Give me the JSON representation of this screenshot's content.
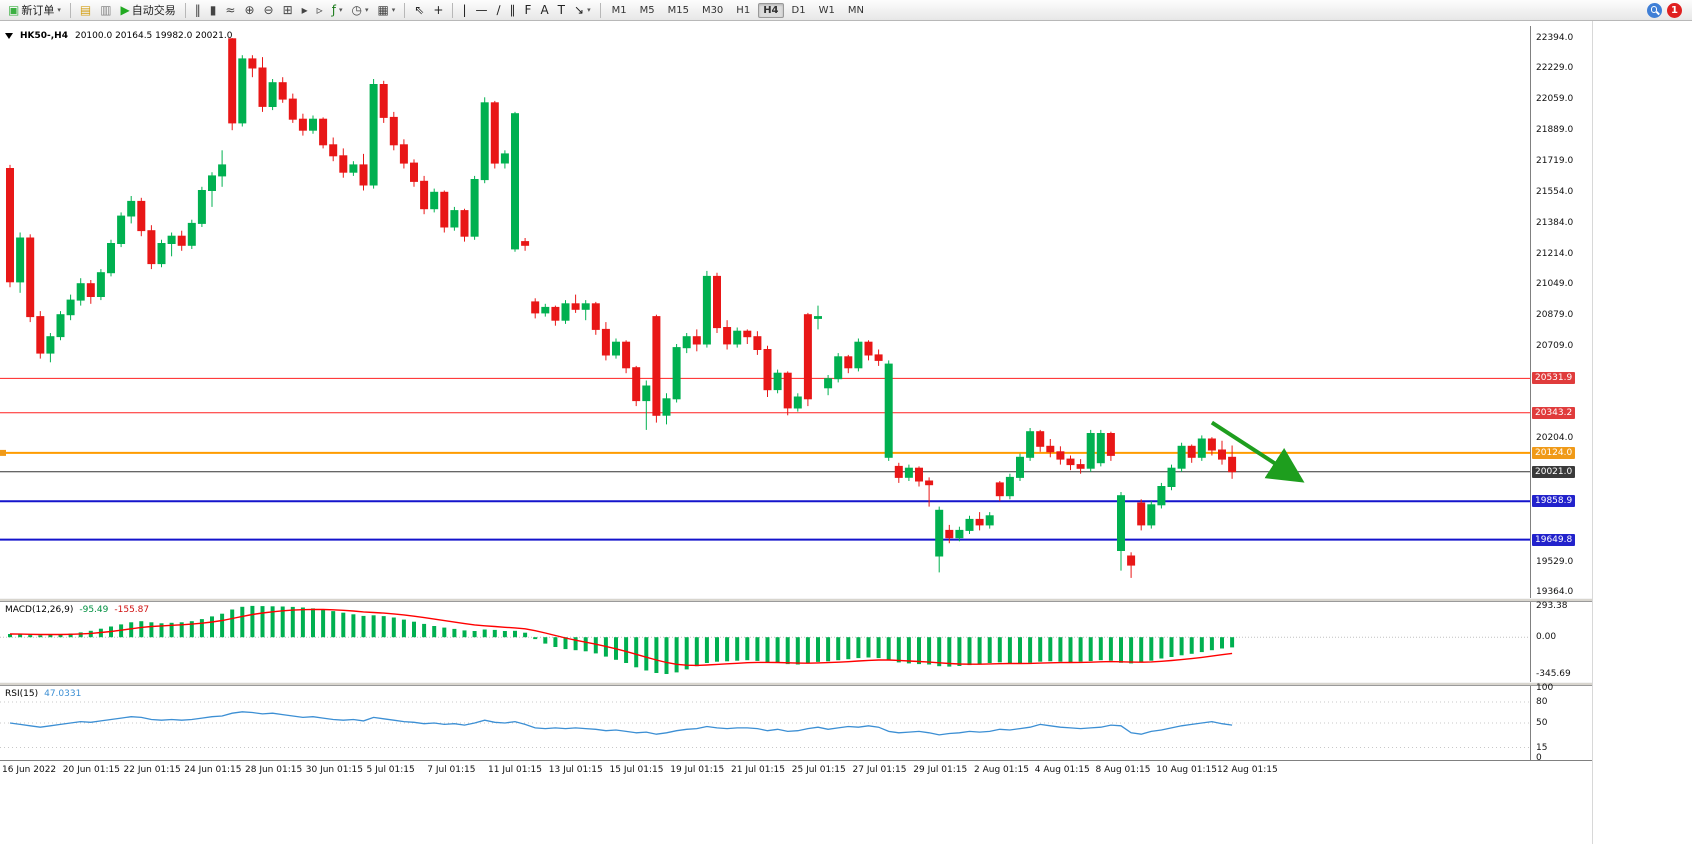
{
  "toolbar": {
    "left_groups": [
      {
        "items": [
          {
            "name": "new-order-button",
            "icon": "new-order-icon",
            "glyph": "▣",
            "glyph_color": "#3cb043",
            "label": "新订单",
            "caret": true
          }
        ]
      },
      {
        "items": [
          {
            "name": "chart-stack-icon",
            "glyph": "▤",
            "glyph_color": "#d4a017"
          },
          {
            "name": "profiles-icon",
            "glyph": "▥",
            "glyph_color": "#888888"
          },
          {
            "name": "auto-trading-button",
            "icon": "play-icon",
            "glyph": "▶",
            "glyph_color": "#22aa22",
            "label": "自动交易"
          }
        ]
      },
      {
        "items": [
          {
            "name": "bars-chart-icon",
            "glyph": "‖",
            "glyph_color": "#444444"
          },
          {
            "name": "candlestick-chart-icon",
            "glyph": "▮",
            "glyph_color": "#444444"
          },
          {
            "name": "line-chart-icon",
            "glyph": "≈",
            "glyph_color": "#444444"
          },
          {
            "name": "zoom-in-icon",
            "glyph": "⊕",
            "glyph_color": "#444444"
          },
          {
            "name": "zoom-out-icon",
            "glyph": "⊖",
            "glyph_color": "#444444"
          },
          {
            "name": "tile-windows-icon",
            "glyph": "⊞",
            "glyph_color": "#444444"
          },
          {
            "name": "auto-scroll-icon",
            "glyph": "▸",
            "glyph_color": "#444444"
          },
          {
            "name": "chart-shift-icon",
            "glyph": "▹",
            "glyph_color": "#444444"
          },
          {
            "name": "indicators-icon",
            "glyph": "ƒ",
            "glyph_color": "#1a7a1a",
            "caret": true
          },
          {
            "name": "periods-icon",
            "glyph": "◷",
            "glyph_color": "#444444",
            "caret": true
          },
          {
            "name": "templates-icon",
            "glyph": "▦",
            "glyph_color": "#444444",
            "caret": true
          }
        ]
      },
      {
        "items": [
          {
            "name": "cursor-icon",
            "glyph": "⇖",
            "glyph_color": "#222222"
          },
          {
            "name": "crosshair-icon",
            "glyph": "+",
            "glyph_color": "#222222"
          }
        ]
      },
      {
        "items": [
          {
            "name": "vertical-line-icon",
            "glyph": "|",
            "glyph_color": "#222222"
          },
          {
            "name": "horizontal-line-icon",
            "glyph": "—",
            "glyph_color": "#222222"
          },
          {
            "name": "trendline-icon",
            "glyph": "∕",
            "glyph_color": "#222222"
          },
          {
            "name": "channel-icon",
            "glyph": "∥",
            "glyph_color": "#222222"
          },
          {
            "name": "fibonacci-icon",
            "glyph": "F",
            "glyph_color": "#222222"
          },
          {
            "name": "text-icon",
            "glyph": "A",
            "glyph_color": "#222222"
          },
          {
            "name": "label-icon",
            "glyph": "T",
            "glyph_color": "#222222"
          },
          {
            "name": "arrows-icon",
            "glyph": "↘",
            "glyph_color": "#222222",
            "caret": true
          }
        ]
      }
    ],
    "timeframes": [
      {
        "label": "M1"
      },
      {
        "label": "M5"
      },
      {
        "label": "M15"
      },
      {
        "label": "M30"
      },
      {
        "label": "H1"
      },
      {
        "label": "H4",
        "active": true
      },
      {
        "label": "D1"
      },
      {
        "label": "W1"
      },
      {
        "label": "MN"
      }
    ],
    "right_icons": [
      {
        "name": "search-icon"
      },
      {
        "name": "notification-badge",
        "label": "1"
      }
    ]
  },
  "chart_data": {
    "type": "candlestick",
    "symbol_period": "HK50-,H4",
    "ohlc_display": "20100.0 20164.5 19982.0 20021.0",
    "colors": {
      "bull": "#00b050",
      "bear": "#e81717",
      "background": "#ffffff"
    },
    "price_axis": {
      "min": 19330,
      "max": 22460,
      "ticks": [
        22394.0,
        22229.0,
        22059.0,
        21889.0,
        21719.0,
        21554.0,
        21384.0,
        21214.0,
        21049.0,
        20879.0,
        20709.0,
        20204.0,
        19529.0,
        19364.0
      ]
    },
    "hlines": [
      {
        "price": 20531.9,
        "color": "#ff2020",
        "badge_bg": "#e03c3c",
        "width": 1
      },
      {
        "price": 20343.2,
        "color": "#ff2020",
        "badge_bg": "#e03c3c",
        "width": 1
      },
      {
        "price": 20124.0,
        "color": "#ff9c00",
        "badge_bg": "#f09a18",
        "width": 2,
        "anchor": true
      },
      {
        "price": 20021.0,
        "color": "#333333",
        "badge_bg": "#3a3a3a",
        "width": 1
      },
      {
        "price": 19858.9,
        "color": "#1414cc",
        "badge_bg": "#2222cc",
        "width": 2
      },
      {
        "price": 19649.8,
        "color": "#1414cc",
        "badge_bg": "#2222cc",
        "width": 2
      }
    ],
    "annotation_arrow": {
      "x_index_from": 119,
      "price_from": 20290,
      "x_index_to": 127.5,
      "price_to": 19985,
      "color": "#1e9e1e"
    },
    "x_labels": [
      "16 Jun 2022",
      "20 Jun 01:15",
      "22 Jun 01:15",
      "24 Jun 01:15",
      "28 Jun 01:15",
      "30 Jun 01:15",
      "5 Jul 01:15",
      "7 Jul 01:15",
      "11 Jul 01:15",
      "13 Jul 01:15",
      "15 Jul 01:15",
      "19 Jul 01:15",
      "21 Jul 01:15",
      "25 Jul 01:15",
      "27 Jul 01:15",
      "29 Jul 01:15",
      "2 Aug 01:15",
      "4 Aug 01:15",
      "8 Aug 01:15",
      "10 Aug 01:15",
      "12 Aug 01:15"
    ],
    "candles": [
      [
        21680,
        21700,
        21030,
        21060
      ],
      [
        21060,
        21330,
        21000,
        21300
      ],
      [
        21300,
        21320,
        20840,
        20870
      ],
      [
        20870,
        20900,
        20640,
        20670
      ],
      [
        20670,
        20780,
        20620,
        20760
      ],
      [
        20760,
        20900,
        20740,
        20880
      ],
      [
        20880,
        20990,
        20850,
        20960
      ],
      [
        20960,
        21080,
        20930,
        21050
      ],
      [
        21050,
        21070,
        20940,
        20980
      ],
      [
        20980,
        21130,
        20960,
        21110
      ],
      [
        21110,
        21290,
        21090,
        21270
      ],
      [
        21270,
        21440,
        21250,
        21420
      ],
      [
        21420,
        21530,
        21380,
        21500
      ],
      [
        21500,
        21520,
        21310,
        21340
      ],
      [
        21340,
        21370,
        21130,
        21160
      ],
      [
        21160,
        21290,
        21140,
        21270
      ],
      [
        21270,
        21330,
        21200,
        21310
      ],
      [
        21310,
        21340,
        21230,
        21260
      ],
      [
        21260,
        21400,
        21240,
        21380
      ],
      [
        21380,
        21580,
        21360,
        21560
      ],
      [
        21560,
        21660,
        21470,
        21640
      ],
      [
        21640,
        21780,
        21580,
        21700
      ],
      [
        22390,
        22394,
        21890,
        21930
      ],
      [
        21930,
        22300,
        21910,
        22280
      ],
      [
        22280,
        22300,
        22180,
        22230
      ],
      [
        22230,
        22290,
        21990,
        22020
      ],
      [
        22020,
        22170,
        22000,
        22150
      ],
      [
        22150,
        22180,
        22040,
        22060
      ],
      [
        22060,
        22090,
        21930,
        21950
      ],
      [
        21950,
        21980,
        21860,
        21890
      ],
      [
        21890,
        21970,
        21870,
        21950
      ],
      [
        21950,
        21960,
        21790,
        21810
      ],
      [
        21810,
        21850,
        21720,
        21750
      ],
      [
        21750,
        21790,
        21630,
        21660
      ],
      [
        21660,
        21720,
        21640,
        21700
      ],
      [
        21700,
        21760,
        21560,
        21590
      ],
      [
        21590,
        22170,
        21570,
        22140
      ],
      [
        22140,
        22160,
        21930,
        21960
      ],
      [
        21960,
        21990,
        21780,
        21810
      ],
      [
        21810,
        21840,
        21680,
        21710
      ],
      [
        21710,
        21730,
        21580,
        21610
      ],
      [
        21610,
        21640,
        21430,
        21460
      ],
      [
        21460,
        21570,
        21440,
        21550
      ],
      [
        21550,
        21560,
        21330,
        21360
      ],
      [
        21360,
        21470,
        21340,
        21450
      ],
      [
        21450,
        21460,
        21280,
        21310
      ],
      [
        21310,
        21640,
        21290,
        21620
      ],
      [
        21620,
        22070,
        21600,
        22040
      ],
      [
        22040,
        22050,
        21680,
        21710
      ],
      [
        21710,
        21780,
        21680,
        21760
      ],
      [
        21240,
        21990,
        21225,
        21980
      ],
      [
        21280,
        21300,
        21230,
        21260
      ],
      [
        20950,
        20970,
        20860,
        20890
      ],
      [
        20890,
        20940,
        20870,
        20920
      ],
      [
        20920,
        20930,
        20820,
        20850
      ],
      [
        20850,
        20960,
        20830,
        20940
      ],
      [
        20940,
        20990,
        20890,
        20910
      ],
      [
        20910,
        20960,
        20850,
        20940
      ],
      [
        20940,
        20950,
        20770,
        20800
      ],
      [
        20800,
        20840,
        20630,
        20660
      ],
      [
        20660,
        20750,
        20640,
        20730
      ],
      [
        20730,
        20740,
        20560,
        20590
      ],
      [
        20590,
        20600,
        20380,
        20410
      ],
      [
        20410,
        20520,
        20250,
        20490
      ],
      [
        20870,
        20880,
        20290,
        20330
      ],
      [
        20330,
        20450,
        20280,
        20420
      ],
      [
        20420,
        20720,
        20400,
        20700
      ],
      [
        20700,
        20780,
        20670,
        20760
      ],
      [
        20760,
        20800,
        20680,
        20720
      ],
      [
        20720,
        21120,
        20700,
        21090
      ],
      [
        21090,
        21110,
        20780,
        20810
      ],
      [
        20810,
        20850,
        20690,
        20720
      ],
      [
        20720,
        20810,
        20700,
        20790
      ],
      [
        20790,
        20800,
        20720,
        20760
      ],
      [
        20760,
        20790,
        20660,
        20690
      ],
      [
        20690,
        20710,
        20430,
        20470
      ],
      [
        20470,
        20580,
        20450,
        20560
      ],
      [
        20560,
        20570,
        20330,
        20370
      ],
      [
        20370,
        20450,
        20350,
        20430
      ],
      [
        20880,
        20890,
        20380,
        20420
      ],
      [
        20860,
        20930,
        20800,
        20870
      ],
      [
        20480,
        20550,
        20440,
        20530
      ],
      [
        20530,
        20670,
        20510,
        20650
      ],
      [
        20650,
        20660,
        20560,
        20590
      ],
      [
        20590,
        20750,
        20570,
        20730
      ],
      [
        20730,
        20740,
        20630,
        20660
      ],
      [
        20660,
        20690,
        20600,
        20630
      ],
      [
        20100,
        20630,
        20080,
        20610
      ],
      [
        20050,
        20070,
        19960,
        19990
      ],
      [
        19990,
        20060,
        19970,
        20040
      ],
      [
        20040,
        20050,
        19940,
        19970
      ],
      [
        19970,
        19990,
        19830,
        19950
      ],
      [
        19560,
        19830,
        19470,
        19810
      ],
      [
        19700,
        19730,
        19630,
        19660
      ],
      [
        19660,
        19720,
        19640,
        19700
      ],
      [
        19700,
        19780,
        19680,
        19760
      ],
      [
        19760,
        19800,
        19700,
        19730
      ],
      [
        19730,
        19800,
        19710,
        19780
      ],
      [
        19960,
        19970,
        19860,
        19890
      ],
      [
        19890,
        20010,
        19870,
        19990
      ],
      [
        19990,
        20120,
        19970,
        20100
      ],
      [
        20100,
        20260,
        20080,
        20240
      ],
      [
        20240,
        20250,
        20130,
        20160
      ],
      [
        20160,
        20200,
        20100,
        20130
      ],
      [
        20130,
        20160,
        20060,
        20090
      ],
      [
        20090,
        20110,
        20030,
        20060
      ],
      [
        20060,
        20090,
        20010,
        20040
      ],
      [
        20040,
        20250,
        20020,
        20230
      ],
      [
        20070,
        20250,
        20050,
        20230
      ],
      [
        20230,
        20240,
        20080,
        20110
      ],
      [
        19590,
        19910,
        19480,
        19890
      ],
      [
        19560,
        19580,
        19440,
        19510
      ],
      [
        19850,
        19870,
        19700,
        19730
      ],
      [
        19730,
        19860,
        19710,
        19840
      ],
      [
        19840,
        19960,
        19820,
        19940
      ],
      [
        19940,
        20060,
        19920,
        20040
      ],
      [
        20040,
        20180,
        20020,
        20160
      ],
      [
        20160,
        20170,
        20070,
        20100
      ],
      [
        20100,
        20220,
        20080,
        20200
      ],
      [
        20200,
        20210,
        20110,
        20140
      ],
      [
        20140,
        20190,
        20060,
        20090
      ],
      [
        20100,
        20164.5,
        19982,
        20021
      ]
    ],
    "macd": {
      "name": "MACD(12,26,9)",
      "value_main": "-95.49",
      "value_signal": "-155.87",
      "histogram_color": "#00b050",
      "signal_color": "#ff0000",
      "axis_ticks": [
        293.38,
        0,
        -345.69
      ],
      "values": [
        30,
        25,
        20,
        18,
        22,
        28,
        35,
        45,
        60,
        80,
        100,
        120,
        140,
        150,
        140,
        130,
        135,
        140,
        150,
        170,
        195,
        220,
        260,
        285,
        293,
        292,
        290,
        288,
        284,
        278,
        270,
        258,
        245,
        230,
        215,
        200,
        205,
        198,
        185,
        165,
        145,
        125,
        105,
        90,
        78,
        64,
        58,
        72,
        68,
        58,
        60,
        42,
        -18,
        -60,
        -92,
        -112,
        -122,
        -132,
        -152,
        -182,
        -212,
        -242,
        -282,
        -312,
        -336,
        -345,
        -330,
        -302,
        -272,
        -242,
        -230,
        -226,
        -220,
        -216,
        -222,
        -236,
        -242,
        -252,
        -256,
        -246,
        -232,
        -226,
        -216,
        -206,
        -196,
        -190,
        -196,
        -216,
        -236,
        -246,
        -252,
        -256,
        -272,
        -276,
        -270,
        -262,
        -252,
        -242,
        -236,
        -242,
        -246,
        -240,
        -230,
        -226,
        -230,
        -236,
        -230,
        -224,
        -216,
        -220,
        -240,
        -246,
        -236,
        -220,
        -200,
        -186,
        -170,
        -156,
        -140,
        -122,
        -106,
        -95.49
      ]
    },
    "rsi": {
      "name": "RSI(15)",
      "value": "47.0331",
      "line_color": "#3c8fd4",
      "levels": [
        100,
        80,
        50,
        15,
        0
      ],
      "values": [
        50,
        48,
        46,
        44,
        46,
        48,
        50,
        52,
        51,
        53,
        55,
        57,
        59,
        58,
        55,
        54,
        55,
        54,
        55,
        57,
        59,
        60,
        64,
        66,
        65,
        63,
        64,
        62,
        60,
        58,
        59,
        57,
        55,
        54,
        55,
        53,
        58,
        56,
        54,
        52,
        51,
        49,
        50,
        48,
        49,
        47,
        50,
        54,
        51,
        50,
        52,
        48,
        43,
        42,
        43,
        42,
        43,
        42,
        41,
        39,
        40,
        38,
        36,
        37,
        34,
        36,
        39,
        41,
        42,
        45,
        43,
        42,
        43,
        43,
        42,
        39,
        41,
        38,
        39,
        42,
        44,
        41,
        43,
        45,
        44,
        46,
        44,
        38,
        36,
        37,
        38,
        36,
        33,
        35,
        36,
        38,
        37,
        38,
        41,
        40,
        42,
        44,
        48,
        46,
        44,
        43,
        42,
        43,
        44,
        47,
        46,
        36,
        34,
        38,
        40,
        43,
        46,
        48,
        50,
        52,
        49,
        47.03
      ]
    }
  }
}
